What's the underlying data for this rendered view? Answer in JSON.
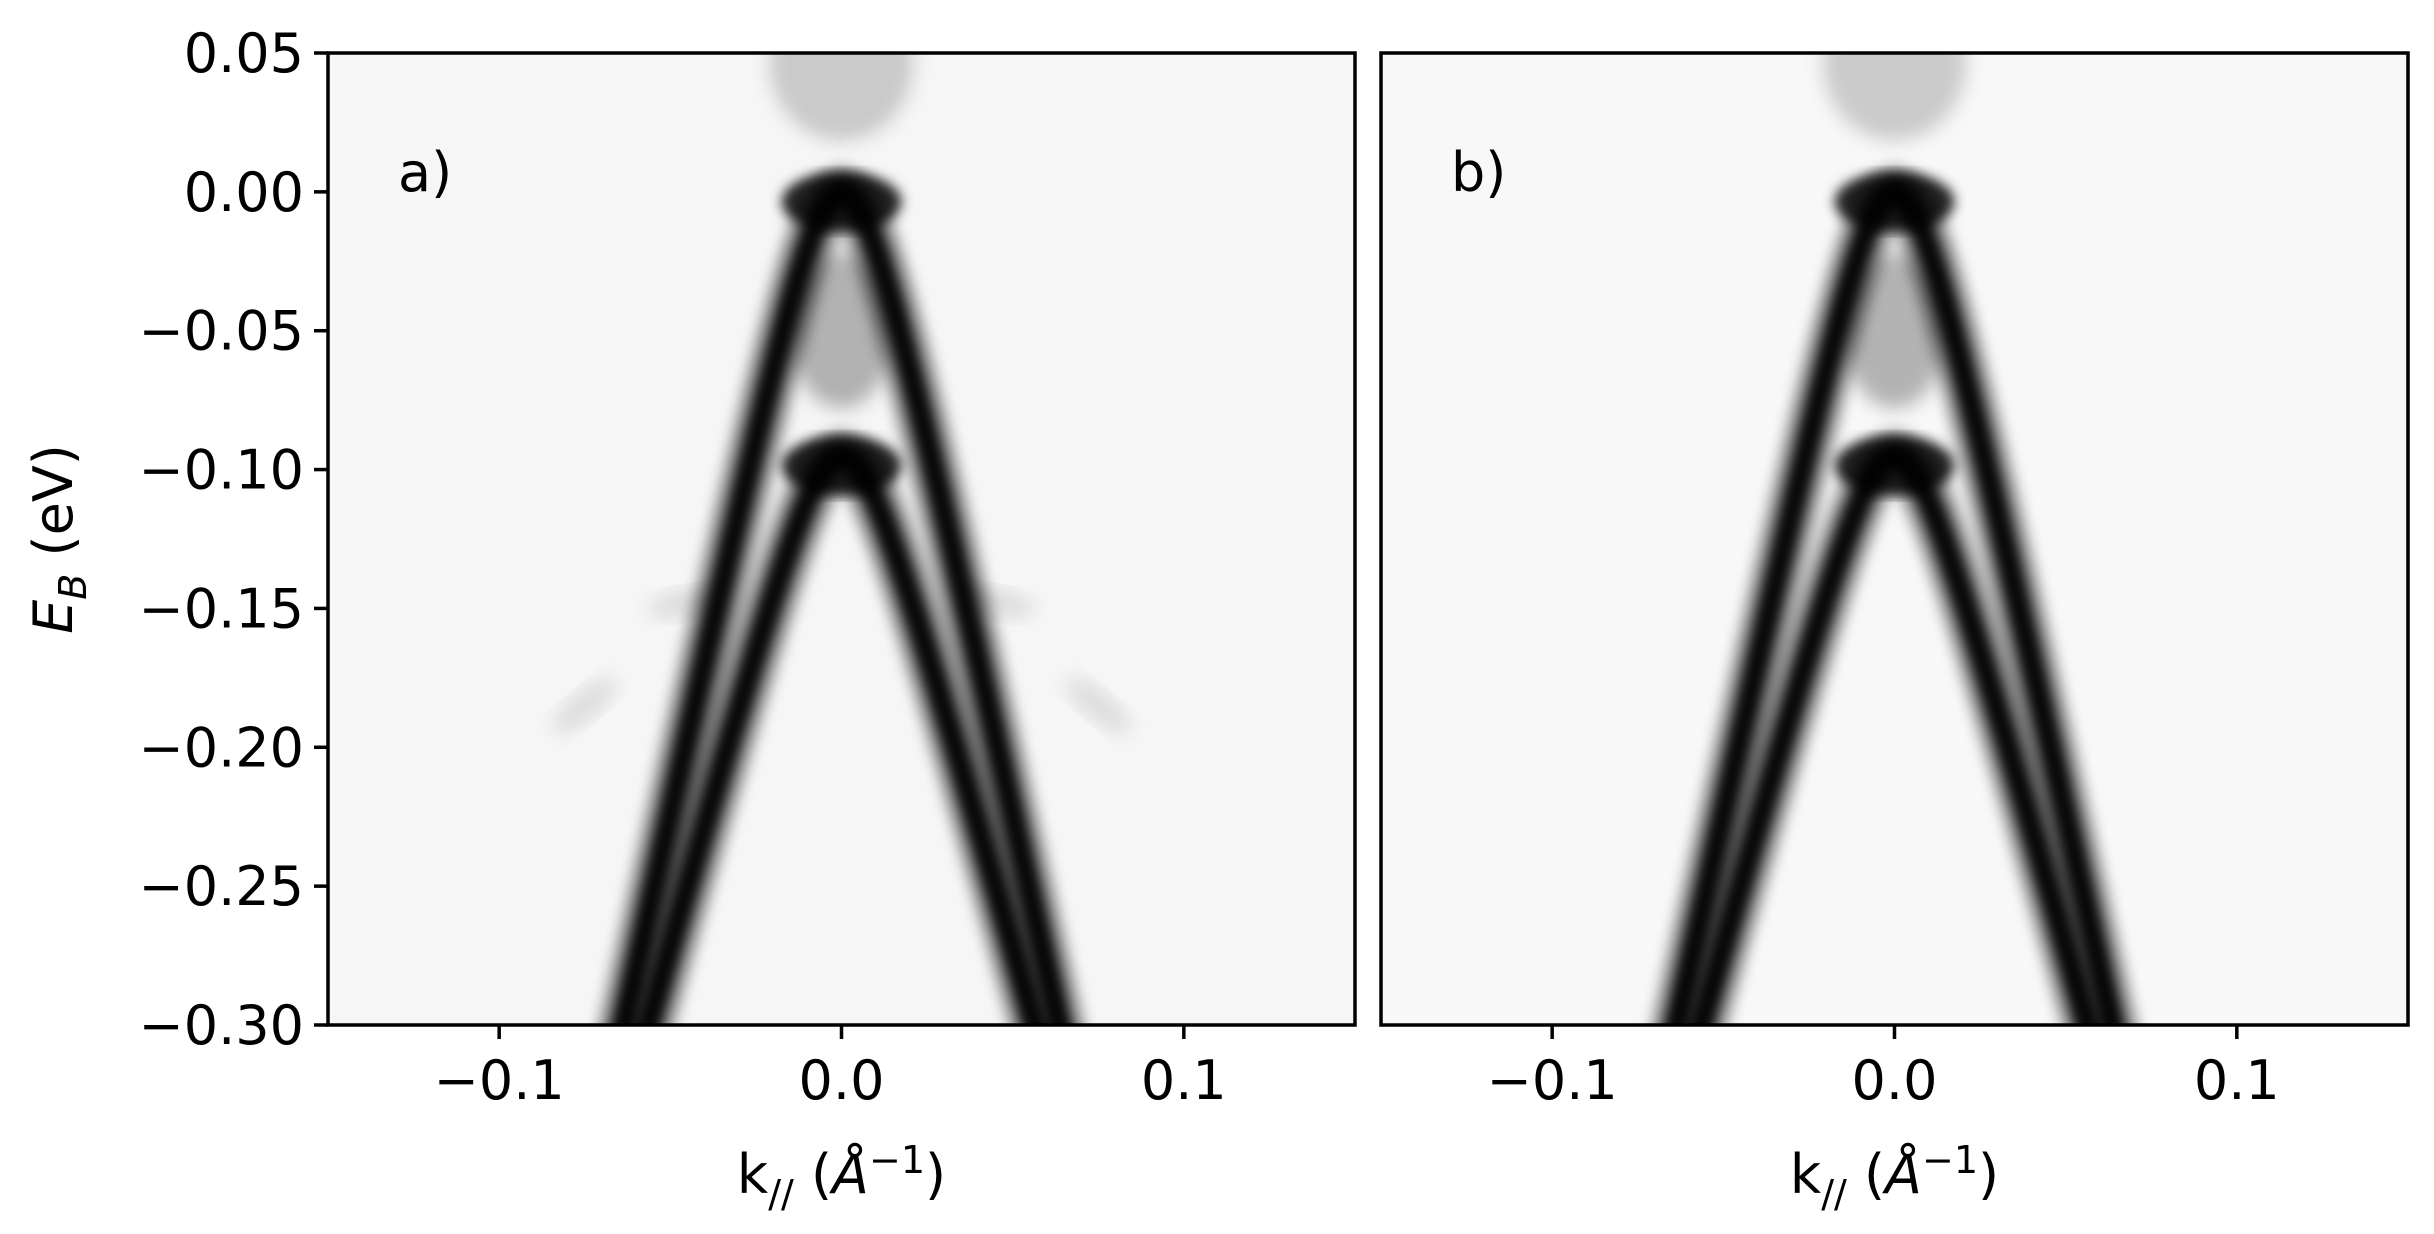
{
  "chart_data": [
    {
      "type": "heatmap",
      "panel_label": "a)",
      "xlabel": {
        "main": "k",
        "sub": "//",
        "open": " (",
        "unit": "Å",
        "sup": "−1",
        "close": ")"
      },
      "ylabel": {
        "main": "E",
        "sub": "B",
        "rest": " (eV)"
      },
      "xlim": [
        -0.15,
        0.15
      ],
      "ylim": [
        -0.3,
        0.05
      ],
      "xticks": [
        {
          "value": -0.1,
          "label": "−0.1"
        },
        {
          "value": 0.0,
          "label": "0.0"
        },
        {
          "value": 0.1,
          "label": "0.1"
        }
      ],
      "yticks": [
        {
          "value": 0.05,
          "label": "0.05"
        },
        {
          "value": 0.0,
          "label": "0.00"
        },
        {
          "value": -0.05,
          "label": "−0.05"
        },
        {
          "value": -0.1,
          "label": "−0.10"
        },
        {
          "value": -0.15,
          "label": "−0.15"
        },
        {
          "value": -0.2,
          "label": "−0.20"
        },
        {
          "value": -0.25,
          "label": "−0.25"
        },
        {
          "value": -0.3,
          "label": "−0.30"
        }
      ],
      "colormap": "Greys",
      "bands": [
        {
          "apex_energy": 0.0,
          "apex_k": 0.0,
          "k_at_min_energy": 0.064
        },
        {
          "apex_energy": -0.095,
          "apex_k": 0.0,
          "k_at_min_energy": 0.058
        }
      ],
      "faint_features": [
        {
          "k": 0.045,
          "energy": -0.148
        },
        {
          "k": 0.075,
          "energy": -0.185
        }
      ]
    },
    {
      "type": "heatmap",
      "panel_label": "b)",
      "xlabel": {
        "main": "k",
        "sub": "//",
        "open": " (",
        "unit": "Å",
        "sup": "−1",
        "close": ")"
      },
      "xlim": [
        -0.15,
        0.15
      ],
      "ylim": [
        -0.3,
        0.05
      ],
      "xticks": [
        {
          "value": -0.1,
          "label": "−0.1"
        },
        {
          "value": 0.0,
          "label": "0.0"
        },
        {
          "value": 0.1,
          "label": "0.1"
        }
      ],
      "colormap": "Greys",
      "bands": [
        {
          "apex_energy": 0.0,
          "apex_k": 0.0,
          "k_at_min_energy": 0.064
        },
        {
          "apex_energy": -0.095,
          "apex_k": 0.0,
          "k_at_min_energy": 0.058
        }
      ]
    }
  ]
}
